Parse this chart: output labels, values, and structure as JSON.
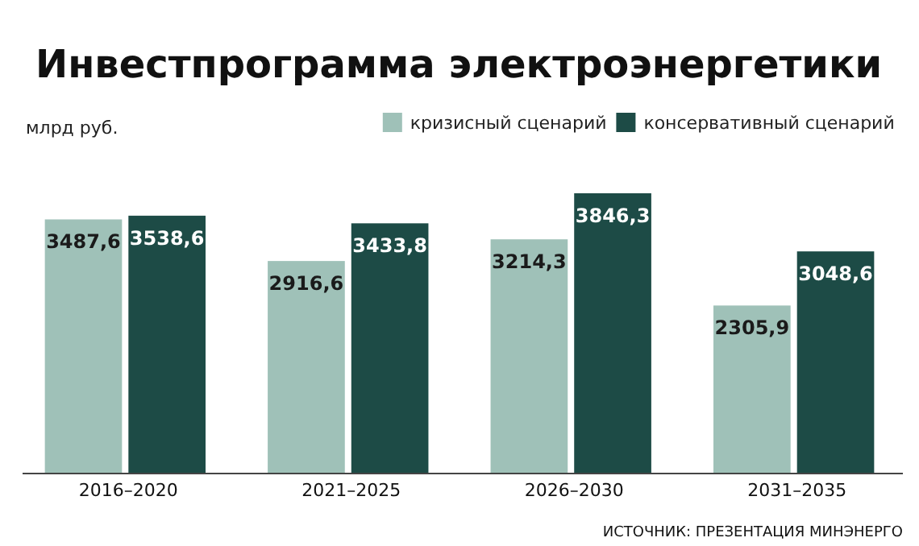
{
  "chart_data": {
    "type": "bar",
    "title": "Инвестпрограмма электроэнергетики",
    "ylabel": "млрд руб.",
    "categories": [
      "2016–2020",
      "2021–2025",
      "2026–2030",
      "2031–2035"
    ],
    "series": [
      {
        "name": "кризисный сценарий",
        "color": "#9fc1b8",
        "values": [
          3487.6,
          2916.6,
          3214.3,
          2305.9
        ],
        "value_labels": [
          "3487,6",
          "2916,6",
          "3214,3",
          "2305,9"
        ]
      },
      {
        "name": "консервативный сценарий",
        "color": "#1d4b46",
        "values": [
          3538.6,
          3433.8,
          3846.3,
          3048.6
        ],
        "value_labels": [
          "3538,6",
          "3433,8",
          "3846,3",
          "3048,6"
        ]
      }
    ],
    "legend": "top right",
    "annotations": [
      "ИСТОЧНИК: ПРЕЗЕНТАЦИЯ МИНЭНЕРГО"
    ]
  }
}
